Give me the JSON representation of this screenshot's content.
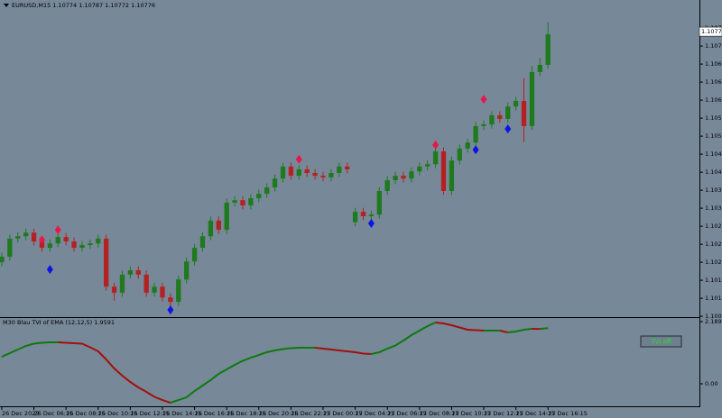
{
  "chart_data": [
    {
      "type": "candlestick",
      "title": "EURUSD,M15  1.10774 1.10787 1.10772 1.10776",
      "up_color": "#1f7a1f",
      "down_color": "#b22222",
      "xlim": [
        -0.22,
        86.85
      ],
      "ylim": [
        1.10063,
        1.10855
      ],
      "yticks": [
        1.10785,
        {
          "value": 1.1074,
          "label": "1.10740"
        },
        1.10695,
        {
          "value": 1.1065,
          "label": "1.10650"
        },
        1.10605,
        {
          "value": 1.1056,
          "label": "1.10560"
        },
        1.10515,
        {
          "value": 1.1047,
          "label": "1.10470"
        },
        1.10425,
        {
          "value": 1.1038,
          "label": "1.10380"
        },
        1.10335,
        {
          "value": 1.1029,
          "label": "1.10290"
        },
        1.10245,
        {
          "value": 1.102,
          "label": "1.10200"
        },
        1.10155,
        {
          "value": 1.1011,
          "label": "1.10110"
        },
        1.10065
      ],
      "last_price": 1.10776,
      "candles": [
        [
          1.102,
          1.10224,
          1.1019,
          1.10214
        ],
        [
          1.10214,
          1.10269,
          1.10204,
          1.10259
        ],
        [
          1.10259,
          1.10275,
          1.10249,
          1.10265
        ],
        [
          1.10265,
          1.10284,
          1.10255,
          1.10274
        ],
        [
          1.10274,
          1.10284,
          1.10242,
          1.10252
        ],
        [
          1.10252,
          1.10262,
          1.10226,
          1.10236
        ],
        [
          1.10236,
          1.10257,
          1.10226,
          1.10247
        ],
        [
          1.10247,
          1.10273,
          1.10237,
          1.10263
        ],
        [
          1.10263,
          1.10273,
          1.10242,
          1.10252
        ],
        [
          1.10252,
          1.10262,
          1.10226,
          1.10236
        ],
        [
          1.10236,
          1.10253,
          1.10226,
          1.10243
        ],
        [
          1.10243,
          1.10257,
          1.10233,
          1.10247
        ],
        [
          1.10247,
          1.10269,
          1.10237,
          1.10259
        ],
        [
          1.10259,
          1.10269,
          1.10129,
          1.10139
        ],
        [
          1.10139,
          1.10149,
          1.10104,
          1.10124
        ],
        [
          1.10124,
          1.10179,
          1.10114,
          1.10169
        ],
        [
          1.10169,
          1.1019,
          1.10159,
          1.1018
        ],
        [
          1.1018,
          1.1019,
          1.10159,
          1.10169
        ],
        [
          1.10169,
          1.10179,
          1.10114,
          1.10124
        ],
        [
          1.10124,
          1.10149,
          1.10114,
          1.10139
        ],
        [
          1.10139,
          1.10149,
          1.10102,
          1.10112
        ],
        [
          1.10112,
          1.10122,
          1.1007,
          1.10101
        ],
        [
          1.10101,
          1.10167,
          1.10091,
          1.10157
        ],
        [
          1.10157,
          1.10212,
          1.10147,
          1.10202
        ],
        [
          1.10202,
          1.10246,
          1.10192,
          1.10236
        ],
        [
          1.10236,
          1.10275,
          1.10226,
          1.10265
        ],
        [
          1.10265,
          1.10314,
          1.10255,
          1.10304
        ],
        [
          1.10304,
          1.10314,
          1.10271,
          1.10281
        ],
        [
          1.10281,
          1.10359,
          1.10271,
          1.10349
        ],
        [
          1.10349,
          1.10365,
          1.10339,
          1.10355
        ],
        [
          1.10355,
          1.10365,
          1.10332,
          1.10342
        ],
        [
          1.10342,
          1.1037,
          1.10332,
          1.1036
        ],
        [
          1.1036,
          1.10381,
          1.1035,
          1.10371
        ],
        [
          1.10371,
          1.10397,
          1.10361,
          1.10387
        ],
        [
          1.10387,
          1.10419,
          1.10377,
          1.10409
        ],
        [
          1.10409,
          1.10449,
          1.10399,
          1.10439
        ],
        [
          1.10439,
          1.10449,
          1.10406,
          1.10416
        ],
        [
          1.10416,
          1.10442,
          1.10406,
          1.10432
        ],
        [
          1.10432,
          1.10442,
          1.10413,
          1.10423
        ],
        [
          1.10423,
          1.10433,
          1.10406,
          1.10416
        ],
        [
          1.10416,
          1.10426,
          1.10402,
          1.10412
        ],
        [
          1.10412,
          1.10433,
          1.10402,
          1.10423
        ],
        [
          1.10423,
          1.10449,
          1.10413,
          1.10439
        ],
        [
          1.10439,
          1.10449,
          1.10422,
          1.10432
        ],
        [
          1.103,
          1.10336,
          1.1029,
          1.10326
        ],
        [
          1.10326,
          1.10336,
          1.10305,
          1.10315
        ],
        [
          1.10315,
          1.10329,
          1.1029,
          1.10319
        ],
        [
          1.10319,
          1.10388,
          1.10309,
          1.10378
        ],
        [
          1.10378,
          1.10415,
          1.10368,
          1.10405
        ],
        [
          1.10405,
          1.10426,
          1.10395,
          1.10416
        ],
        [
          1.10416,
          1.10426,
          1.10399,
          1.10409
        ],
        [
          1.10409,
          1.10437,
          1.10399,
          1.10427
        ],
        [
          1.10427,
          1.10449,
          1.10417,
          1.10439
        ],
        [
          1.10439,
          1.10455,
          1.10429,
          1.10445
        ],
        [
          1.10445,
          1.10487,
          1.10435,
          1.10477
        ],
        [
          1.10477,
          1.10487,
          1.10368,
          1.10378
        ],
        [
          1.10378,
          1.10464,
          1.10368,
          1.10454
        ],
        [
          1.10454,
          1.10494,
          1.10444,
          1.10484
        ],
        [
          1.10484,
          1.10509,
          1.10474,
          1.10499
        ],
        [
          1.10499,
          1.1055,
          1.10489,
          1.1054
        ],
        [
          1.1054,
          1.10554,
          1.1053,
          1.10544
        ],
        [
          1.10544,
          1.10577,
          1.10534,
          1.10567
        ],
        [
          1.10567,
          1.10577,
          1.10548,
          1.10558
        ],
        [
          1.10558,
          1.10599,
          1.10548,
          1.10589
        ],
        [
          1.10589,
          1.10613,
          1.10579,
          1.10603
        ],
        [
          1.10603,
          1.1066,
          1.105,
          1.1054
        ],
        [
          1.1054,
          1.1069,
          1.1053,
          1.10675
        ],
        [
          1.10675,
          1.1071,
          1.10665,
          1.10693
        ],
        [
          1.10693,
          1.108,
          1.10683,
          1.10769
        ]
      ],
      "signals": [
        {
          "color": "#e8174a",
          "x": [
            5,
            7,
            37,
            54,
            60
          ],
          "values": [
            1.10256,
            1.10281,
            1.10457,
            1.10493,
            1.10607
          ]
        },
        {
          "color": "#0a14e6",
          "x": [
            6,
            21,
            46,
            59,
            63
          ],
          "values": [
            1.10182,
            1.10081,
            1.10297,
            1.10481,
            1.10533
          ]
        }
      ]
    },
    {
      "type": "line",
      "title": "M30 Blau TVI of EMA (12,12,5) 1.9591",
      "up_color": "#0b7a0b",
      "down_color": "#a30f0f",
      "xlim": [
        -0.22,
        86.85
      ],
      "ylim": [
        -0.7608,
        2.2824
      ],
      "yticks": [
        2.1892,
        {
          "value": 0,
          "label": "0.00"
        }
      ],
      "xticks": [
        {
          "value": 0,
          "label": "26 Dec 2023"
        },
        {
          "value": 4,
          "label": "26 Dec 06:15"
        },
        {
          "value": 8,
          "label": "26 Dec 08:15"
        },
        {
          "value": 12,
          "label": "26 Dec 10:15"
        },
        {
          "value": 16,
          "label": "26 Dec 12:15"
        },
        {
          "value": 20,
          "label": "26 Dec 14:15"
        },
        {
          "value": 24,
          "label": "26 Dec 16:15"
        },
        {
          "value": 28,
          "label": "26 Dec 18:15"
        },
        {
          "value": 32,
          "label": "26 Dec 20:15"
        },
        {
          "value": 36,
          "label": "26 Dec 22:15"
        },
        {
          "value": 40,
          "label": "27 Dec 00:15"
        },
        {
          "value": 44,
          "label": "27 Dec 04:15"
        },
        {
          "value": 48,
          "label": "27 Dec 06:15"
        },
        {
          "value": 52,
          "label": "27 Dec 08:15"
        },
        {
          "value": 56,
          "label": "27 Dec 10:15"
        },
        {
          "value": 60,
          "label": "27 Dec 12:15"
        },
        {
          "value": 64,
          "label": "27 Dec 14:15"
        },
        {
          "value": 68,
          "label": "27 Dec 16:15"
        }
      ],
      "values": [
        0.951,
        1.078,
        1.205,
        1.331,
        1.411,
        1.442,
        1.458,
        1.458,
        1.442,
        1.427,
        1.411,
        1.284,
        1.141,
        0.856,
        0.539,
        0.285,
        0.063,
        -0.127,
        -0.285,
        -0.46,
        -0.571,
        -0.666,
        -0.571,
        -0.476,
        -0.254,
        -0.063,
        0.127,
        0.349,
        0.507,
        0.666,
        0.808,
        0.919,
        1.014,
        1.11,
        1.173,
        1.221,
        1.252,
        1.268,
        1.268,
        1.268,
        1.236,
        1.205,
        1.173,
        1.141,
        1.11,
        1.062,
        1.046,
        1.11,
        1.236,
        1.347,
        1.522,
        1.712,
        1.87,
        2.029,
        2.156,
        2.124,
        2.061,
        1.981,
        1.902,
        1.886,
        1.87,
        1.87,
        1.87,
        1.807,
        1.839,
        1.902,
        1.934,
        1.93,
        1.959
      ],
      "button": "TVI off"
    }
  ]
}
